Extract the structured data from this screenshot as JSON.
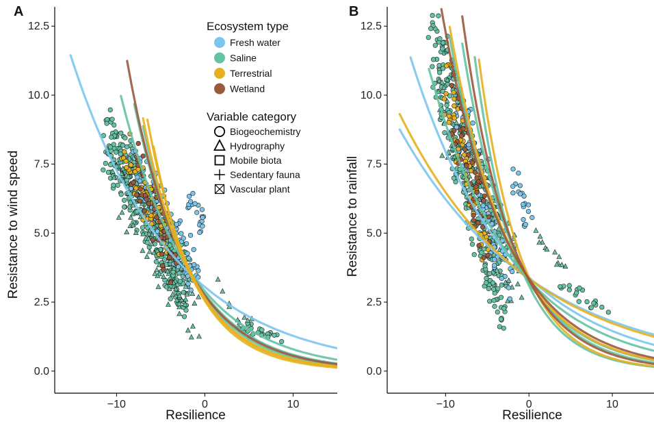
{
  "legend": {
    "ecosystem_title": "Ecosystem type",
    "ecosystems": [
      {
        "name": "Fresh water",
        "color": "#7cc6ec"
      },
      {
        "name": "Saline",
        "color": "#66c2a5"
      },
      {
        "name": "Terrestrial",
        "color": "#e6b020"
      },
      {
        "name": "Wetland",
        "color": "#9b5a3c"
      }
    ],
    "category_title": "Variable category",
    "categories": [
      {
        "name": "Biogeochemistry",
        "shape": "circle"
      },
      {
        "name": "Hydrography",
        "shape": "triangle"
      },
      {
        "name": "Mobile biota",
        "shape": "square"
      },
      {
        "name": "Sedentary fauna",
        "shape": "plus"
      },
      {
        "name": "Vascular plant",
        "shape": "boxed-x"
      }
    ]
  },
  "chart_data": [
    {
      "type": "scatter",
      "panel": "A",
      "xlabel": "Resilience",
      "ylabel": "Resistance to wind speed",
      "xlim": [
        -17,
        15
      ],
      "ylim": [
        -0.8,
        13.2
      ],
      "x_ticks": [
        -10,
        0,
        10
      ],
      "x_tick_labels": [
        "−10",
        "0",
        "10"
      ],
      "y_ticks": [
        0,
        2.5,
        5,
        7.5,
        10,
        12.5
      ],
      "y_tick_labels": [
        "0.0",
        "2.5",
        "5.0",
        "7.5",
        "10.0",
        "12.5"
      ],
      "grid": false,
      "point_clusters": [
        {
          "ecosystem": "Saline",
          "shape": "circle",
          "x_range": [
            -11,
            -2
          ],
          "y_range": [
            3.0,
            8.5
          ],
          "n": 380
        },
        {
          "ecosystem": "Saline",
          "shape": "triangle",
          "x_range": [
            -10,
            -1
          ],
          "y_range": [
            2.0,
            7.0
          ],
          "n": 90
        },
        {
          "ecosystem": "Fresh water",
          "shape": "circle",
          "x_range": [
            -8,
            -1
          ],
          "y_range": [
            3.5,
            7.5
          ],
          "n": 110
        },
        {
          "ecosystem": "Terrestrial",
          "shape": "circle",
          "x_range": [
            -9,
            -4
          ],
          "y_range": [
            4.5,
            8.0
          ],
          "n": 60
        },
        {
          "ecosystem": "Wetland",
          "shape": "circle",
          "x_range": [
            -8,
            -3
          ],
          "y_range": [
            3.5,
            7.5
          ],
          "n": 45
        },
        {
          "ecosystem": "Fresh water",
          "shape": "circle",
          "x_range": [
            -2,
            0
          ],
          "y_range": [
            5.0,
            6.5
          ],
          "n": 20
        },
        {
          "ecosystem": "Saline",
          "shape": "circle",
          "x_range": [
            4,
            9
          ],
          "y_range": [
            1.0,
            1.7
          ],
          "n": 22
        },
        {
          "ecosystem": "Saline",
          "shape": "triangle",
          "x_range": [
            1,
            5
          ],
          "y_range": [
            1.5,
            3.2
          ],
          "n": 10
        }
      ],
      "fit_series": [
        {
          "ecosystem": "Fresh water",
          "a": 3.05,
          "b": 0.087,
          "x_range": [
            -15.2,
            15
          ]
        },
        {
          "ecosystem": "Saline",
          "a": 2.9,
          "b": 0.13,
          "x_range": [
            -9.5,
            15
          ]
        },
        {
          "ecosystem": "Saline",
          "a": 2.8,
          "b": 0.155,
          "x_range": [
            -8.0,
            15
          ]
        },
        {
          "ecosystem": "Saline",
          "a": 2.7,
          "b": 0.17,
          "x_range": [
            -7.0,
            15
          ]
        },
        {
          "ecosystem": "Wetland",
          "a": 2.75,
          "b": 0.16,
          "x_range": [
            -8.8,
            15
          ]
        },
        {
          "ecosystem": "Terrestrial",
          "a": 2.6,
          "b": 0.18,
          "x_range": [
            -7.0,
            15
          ]
        },
        {
          "ecosystem": "Terrestrial",
          "a": 2.65,
          "b": 0.19,
          "x_range": [
            -6.5,
            15
          ]
        },
        {
          "ecosystem": "Terrestrial",
          "a": 2.55,
          "b": 0.2,
          "x_range": [
            -5.8,
            15
          ]
        }
      ]
    },
    {
      "type": "scatter",
      "panel": "B",
      "xlabel": "Resilience",
      "ylabel": "Resistance to rainfall",
      "xlim": [
        -17,
        15
      ],
      "ylim": [
        -0.8,
        13.2
      ],
      "x_ticks": [
        -10,
        0,
        10
      ],
      "x_tick_labels": [
        "−10",
        "0",
        "10"
      ],
      "y_ticks": [
        0,
        2.5,
        5,
        7.5,
        10,
        12.5
      ],
      "y_tick_labels": [
        "0.0",
        "2.5",
        "5.0",
        "7.5",
        "10.0",
        "12.5"
      ],
      "grid": false,
      "point_clusters": [
        {
          "ecosystem": "Saline",
          "shape": "circle",
          "x_range": [
            -11.5,
            -3
          ],
          "y_range": [
            3.0,
            11.5
          ],
          "n": 320
        },
        {
          "ecosystem": "Saline",
          "shape": "triangle",
          "x_range": [
            -11,
            -1
          ],
          "y_range": [
            3.0,
            10.0
          ],
          "n": 80
        },
        {
          "ecosystem": "Fresh water",
          "shape": "circle",
          "x_range": [
            -9,
            -2
          ],
          "y_range": [
            3.5,
            9.5
          ],
          "n": 100
        },
        {
          "ecosystem": "Terrestrial",
          "shape": "circle",
          "x_range": [
            -10,
            -5
          ],
          "y_range": [
            5.0,
            10.5
          ],
          "n": 60
        },
        {
          "ecosystem": "Wetland",
          "shape": "circle",
          "x_range": [
            -9,
            -5
          ],
          "y_range": [
            4.5,
            10.0
          ],
          "n": 50
        },
        {
          "ecosystem": "Fresh water",
          "shape": "circle",
          "x_range": [
            -2,
            0
          ],
          "y_range": [
            5.5,
            7.2
          ],
          "n": 20
        },
        {
          "ecosystem": "Saline",
          "shape": "circle",
          "x_range": [
            4,
            9
          ],
          "y_range": [
            2.2,
            3.2
          ],
          "n": 20
        },
        {
          "ecosystem": "Saline",
          "shape": "triangle",
          "x_range": [
            1,
            4
          ],
          "y_range": [
            3.5,
            5.0
          ],
          "n": 12
        }
      ],
      "fit_series": [
        {
          "ecosystem": "Fresh water",
          "a": 3.35,
          "b": 0.062,
          "x_range": [
            -15.5,
            15
          ]
        },
        {
          "ecosystem": "Fresh water",
          "a": 3.4,
          "b": 0.085,
          "x_range": [
            -14.2,
            15
          ]
        },
        {
          "ecosystem": "Terrestrial",
          "a": 3.35,
          "b": 0.066,
          "x_range": [
            -15.5,
            15
          ]
        },
        {
          "ecosystem": "Saline",
          "a": 3.3,
          "b": 0.1,
          "x_range": [
            -12.0,
            15
          ]
        },
        {
          "ecosystem": "Saline",
          "a": 3.2,
          "b": 0.14,
          "x_range": [
            -9.5,
            15
          ]
        },
        {
          "ecosystem": "Saline",
          "a": 3.3,
          "b": 0.16,
          "x_range": [
            -8.0,
            15
          ]
        },
        {
          "ecosystem": "Saline",
          "a": 3.1,
          "b": 0.2,
          "x_range": [
            -6.5,
            15
          ]
        },
        {
          "ecosystem": "Terrestrial",
          "a": 3.3,
          "b": 0.14,
          "x_range": [
            -9.5,
            15
          ]
        },
        {
          "ecosystem": "Terrestrial",
          "a": 3.4,
          "b": 0.2,
          "x_range": [
            -6.0,
            15
          ]
        },
        {
          "ecosystem": "Wetland",
          "a": 3.35,
          "b": 0.13,
          "x_range": [
            -10.5,
            15
          ]
        },
        {
          "ecosystem": "Wetland",
          "a": 3.3,
          "b": 0.17,
          "x_range": [
            -8.0,
            15
          ]
        }
      ]
    }
  ]
}
